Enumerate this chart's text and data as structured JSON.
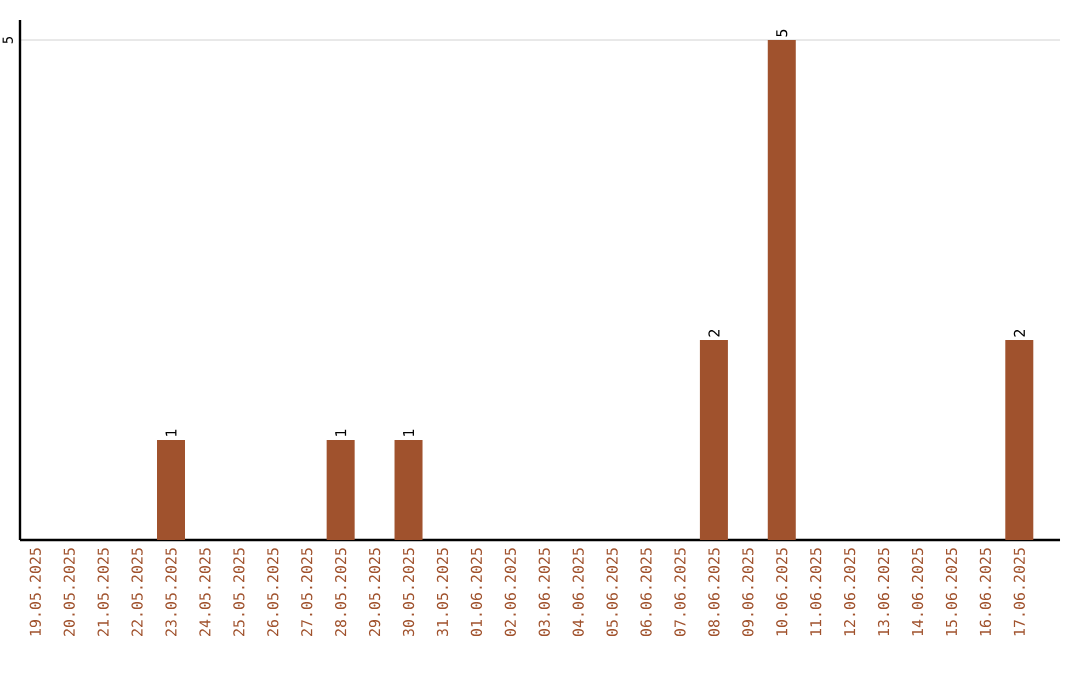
{
  "chart_data": {
    "type": "bar",
    "categories": [
      "19.05.2025",
      "20.05.2025",
      "21.05.2025",
      "22.05.2025",
      "23.05.2025",
      "24.05.2025",
      "25.05.2025",
      "26.05.2025",
      "27.05.2025",
      "28.05.2025",
      "29.05.2025",
      "30.05.2025",
      "31.05.2025",
      "01.06.2025",
      "02.06.2025",
      "03.06.2025",
      "04.06.2025",
      "05.06.2025",
      "06.06.2025",
      "07.06.2025",
      "08.06.2025",
      "09.06.2025",
      "10.06.2025",
      "11.06.2025",
      "12.06.2025",
      "13.06.2025",
      "14.06.2025",
      "15.06.2025",
      "16.06.2025",
      "17.06.2025"
    ],
    "values": [
      0,
      0,
      0,
      0,
      1,
      0,
      0,
      0,
      0,
      1,
      0,
      1,
      0,
      0,
      0,
      0,
      0,
      0,
      0,
      0,
      2,
      0,
      5,
      0,
      0,
      0,
      0,
      0,
      0,
      2
    ],
    "value_labels": [
      null,
      null,
      null,
      null,
      "1",
      null,
      null,
      null,
      null,
      "1",
      null,
      "1",
      null,
      null,
      null,
      null,
      null,
      null,
      null,
      null,
      "2",
      null,
      "5",
      null,
      null,
      null,
      null,
      null,
      null,
      "2"
    ],
    "color": "#a0522d",
    "ylim": [
      0,
      5.2
    ],
    "yticks": [
      5
    ],
    "grid": "y"
  }
}
